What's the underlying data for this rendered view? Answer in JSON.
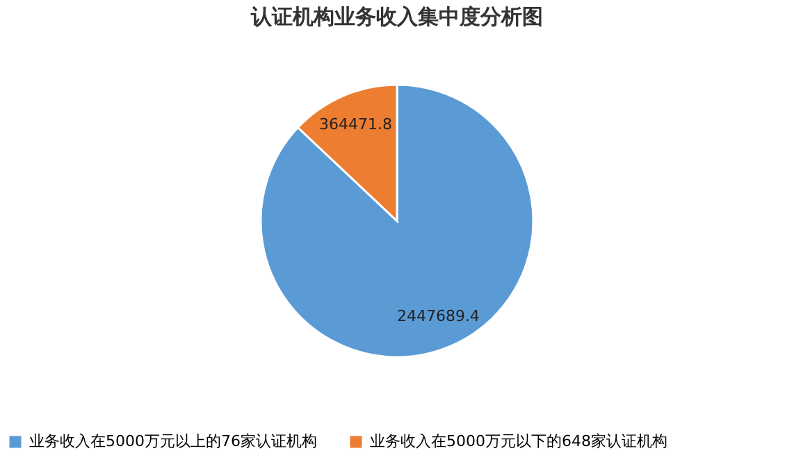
{
  "chart_data": {
    "type": "pie",
    "title": "认证机构业务收入集中度分析图",
    "categories": [
      "业务收入在5000万元以上的76家认证机构",
      "业务收入在5000万元以下的648家认证机构"
    ],
    "values": [
      2447689.4,
      364471.8
    ],
    "colors": [
      "#5b9bd5",
      "#ed7d31"
    ],
    "data_labels": true,
    "legend": "bottom"
  }
}
